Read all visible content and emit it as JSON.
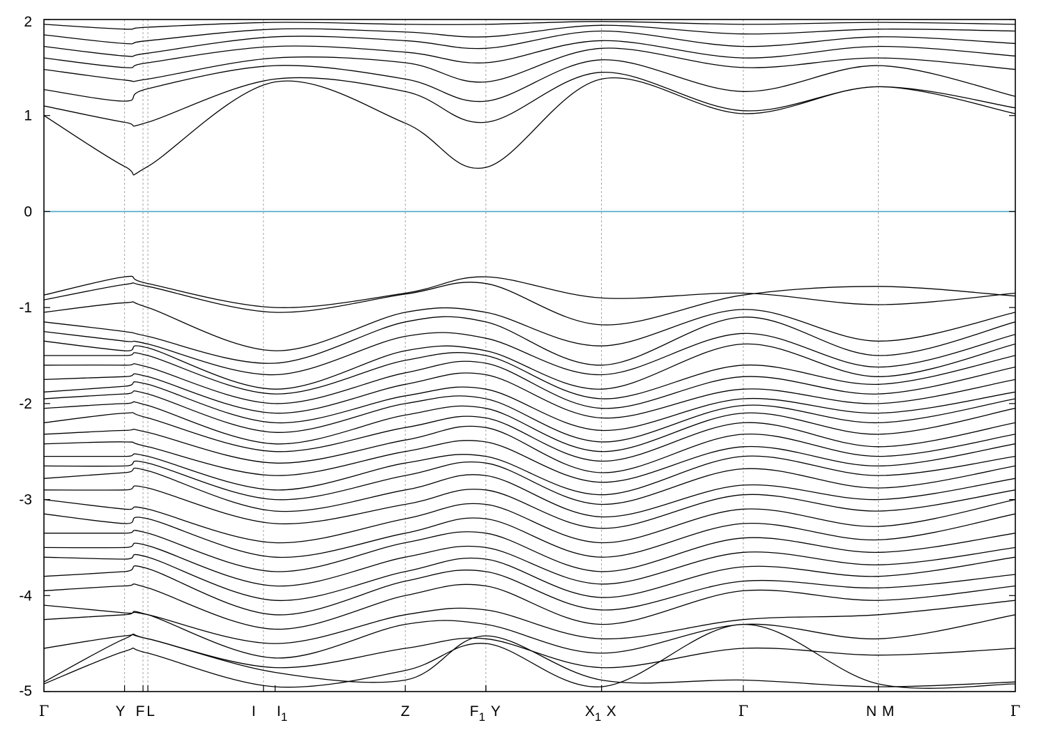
{
  "chart_data": {
    "type": "line",
    "title": "",
    "xlabel": "",
    "ylabel": "",
    "ylim": [
      -5,
      2
    ],
    "yticks": [
      "2",
      "1",
      "0",
      "-1",
      "-2",
      "-3",
      "-4",
      "-5"
    ],
    "ytick_values": [
      2,
      1,
      0,
      -1,
      -2,
      -3,
      -4,
      -5
    ],
    "grid": "vertical dashed lines at high-symmetry points",
    "fermi_level": {
      "value": 0,
      "color": "#4aa8c4"
    },
    "kpoints": [
      {
        "label": "Γ",
        "sub": "",
        "x": 0
      },
      {
        "label": "Y",
        "sub": "",
        "x": 0.083
      },
      {
        "label": "F",
        "sub": "",
        "x": 0.102
      },
      {
        "label": "L",
        "sub": "",
        "x": 0.107
      },
      {
        "label": "I",
        "sub": "",
        "x": 0.226
      },
      {
        "label": "I",
        "sub": "1",
        "x": 0.238
      },
      {
        "label": "Z",
        "sub": "",
        "x": 0.372
      },
      {
        "label": "F",
        "sub": "1",
        "x": 0.455
      },
      {
        "label": "Y",
        "sub": "",
        "x": 0.455
      },
      {
        "label": "X",
        "sub": "1",
        "x": 0.574
      },
      {
        "label": "X",
        "sub": "",
        "x": 0.574
      },
      {
        "label": "Γ",
        "sub": "",
        "x": 0.72
      },
      {
        "label": "N",
        "sub": "",
        "x": 0.859
      },
      {
        "label": "M",
        "sub": "",
        "x": 0.859
      },
      {
        "label": "Γ",
        "sub": "",
        "x": 1.0
      }
    ],
    "vlines": [
      0.083,
      0.102,
      0.107,
      0.226,
      0.372,
      0.455,
      0.574,
      0.72,
      0.859
    ],
    "series_x": [
      0,
      0.083,
      0.107,
      0.238,
      0.372,
      0.455,
      0.574,
      0.72,
      0.859,
      1.0
    ],
    "series": [
      {
        "values": [
          1.0,
          0.47,
          0.47,
          1.35,
          0.92,
          0.46,
          1.38,
          1.02,
          1.3,
          1.02
        ]
      },
      {
        "values": [
          1.1,
          0.93,
          0.93,
          1.38,
          1.25,
          0.93,
          1.45,
          1.05,
          1.3,
          1.08
        ]
      },
      {
        "values": [
          1.27,
          1.15,
          1.28,
          1.52,
          1.38,
          1.15,
          1.58,
          1.25,
          1.52,
          1.2
        ]
      },
      {
        "values": [
          1.48,
          1.37,
          1.38,
          1.6,
          1.55,
          1.35,
          1.7,
          1.5,
          1.6,
          1.48
        ]
      },
      {
        "values": [
          1.6,
          1.5,
          1.55,
          1.72,
          1.66,
          1.55,
          1.78,
          1.6,
          1.72,
          1.62
        ]
      },
      {
        "values": [
          1.72,
          1.62,
          1.65,
          1.82,
          1.78,
          1.7,
          1.88,
          1.72,
          1.82,
          1.75
        ]
      },
      {
        "values": [
          1.84,
          1.75,
          1.78,
          1.9,
          1.87,
          1.82,
          1.94,
          1.85,
          1.9,
          1.88
        ]
      },
      {
        "values": [
          1.95,
          1.9,
          1.92,
          1.97,
          1.95,
          1.95,
          1.98,
          1.95,
          1.97,
          1.95
        ]
      },
      {
        "values": [
          -0.87,
          -0.68,
          -0.75,
          -1.0,
          -0.85,
          -0.68,
          -0.9,
          -0.85,
          -0.97,
          -0.85
        ]
      },
      {
        "values": [
          -0.92,
          -0.76,
          -0.78,
          -1.05,
          -0.86,
          -0.75,
          -1.18,
          -0.87,
          -0.78,
          -0.88
        ]
      },
      {
        "values": [
          -1.05,
          -0.95,
          -1.0,
          -1.45,
          -1.05,
          -1.05,
          -1.4,
          -1.02,
          -1.35,
          -1.05
        ]
      },
      {
        "values": [
          -1.15,
          -1.25,
          -1.3,
          -1.58,
          -1.15,
          -1.15,
          -1.6,
          -1.1,
          -1.5,
          -1.15
        ]
      },
      {
        "values": [
          -1.25,
          -1.35,
          -1.38,
          -1.7,
          -1.3,
          -1.32,
          -1.7,
          -1.27,
          -1.62,
          -1.28
        ]
      },
      {
        "values": [
          -1.35,
          -1.45,
          -1.42,
          -1.85,
          -1.45,
          -1.45,
          -1.85,
          -1.38,
          -1.72,
          -1.38
        ]
      },
      {
        "values": [
          -1.5,
          -1.5,
          -1.5,
          -1.9,
          -1.55,
          -1.5,
          -1.95,
          -1.6,
          -1.8,
          -1.5
        ]
      },
      {
        "values": [
          -1.6,
          -1.6,
          -1.62,
          -2.0,
          -1.68,
          -1.58,
          -2.05,
          -1.72,
          -1.9,
          -1.62
        ]
      },
      {
        "values": [
          -1.75,
          -1.72,
          -1.72,
          -2.1,
          -1.8,
          -1.7,
          -2.15,
          -1.85,
          -2.0,
          -1.75
        ]
      },
      {
        "values": [
          -1.88,
          -1.82,
          -1.8,
          -2.2,
          -1.92,
          -1.85,
          -2.28,
          -1.95,
          -2.1,
          -1.88
        ]
      },
      {
        "values": [
          -1.95,
          -1.9,
          -1.9,
          -2.3,
          -2.0,
          -1.95,
          -2.4,
          -2.02,
          -2.2,
          -1.95
        ]
      },
      {
        "values": [
          -2.05,
          -2.0,
          -2.02,
          -2.42,
          -2.12,
          -2.05,
          -2.5,
          -2.1,
          -2.32,
          -2.05
        ]
      },
      {
        "values": [
          -2.2,
          -2.1,
          -2.15,
          -2.5,
          -2.25,
          -2.15,
          -2.6,
          -2.2,
          -2.45,
          -2.2
        ]
      },
      {
        "values": [
          -2.32,
          -2.28,
          -2.3,
          -2.62,
          -2.38,
          -2.25,
          -2.72,
          -2.32,
          -2.55,
          -2.32
        ]
      },
      {
        "values": [
          -2.42,
          -2.4,
          -2.45,
          -2.75,
          -2.5,
          -2.4,
          -2.82,
          -2.45,
          -2.65,
          -2.42
        ]
      },
      {
        "values": [
          -2.55,
          -2.55,
          -2.55,
          -2.9,
          -2.62,
          -2.55,
          -2.95,
          -2.55,
          -2.75,
          -2.55
        ]
      },
      {
        "values": [
          -2.65,
          -2.65,
          -2.62,
          -3.0,
          -2.75,
          -2.62,
          -3.05,
          -2.68,
          -2.88,
          -2.65
        ]
      },
      {
        "values": [
          -2.78,
          -2.72,
          -2.7,
          -3.12,
          -2.9,
          -2.75,
          -3.18,
          -2.85,
          -3.0,
          -2.78
        ]
      },
      {
        "values": [
          -2.9,
          -2.9,
          -2.88,
          -3.25,
          -3.05,
          -2.9,
          -3.3,
          -2.95,
          -3.12,
          -2.9
        ]
      },
      {
        "values": [
          -3.0,
          -3.1,
          -3.1,
          -3.45,
          -3.2,
          -3.05,
          -3.45,
          -3.1,
          -3.28,
          -3.0
        ]
      },
      {
        "values": [
          -3.15,
          -3.25,
          -3.2,
          -3.6,
          -3.35,
          -3.2,
          -3.6,
          -3.25,
          -3.42,
          -3.15
        ]
      },
      {
        "values": [
          -3.35,
          -3.35,
          -3.35,
          -3.75,
          -3.45,
          -3.35,
          -3.75,
          -3.4,
          -3.55,
          -3.35
        ]
      },
      {
        "values": [
          -3.5,
          -3.5,
          -3.48,
          -3.9,
          -3.6,
          -3.5,
          -3.88,
          -3.55,
          -3.68,
          -3.5
        ]
      },
      {
        "values": [
          -3.6,
          -3.62,
          -3.6,
          -4.05,
          -3.75,
          -3.62,
          -4.02,
          -3.7,
          -3.8,
          -3.6
        ]
      },
      {
        "values": [
          -3.8,
          -3.75,
          -3.72,
          -4.2,
          -3.85,
          -3.75,
          -4.15,
          -3.85,
          -3.92,
          -3.78
        ]
      },
      {
        "values": [
          -3.95,
          -3.9,
          -3.92,
          -4.35,
          -4.0,
          -3.9,
          -4.3,
          -3.95,
          -4.05,
          -3.9
        ]
      },
      {
        "values": [
          -4.1,
          -4.18,
          -4.2,
          -4.5,
          -4.2,
          -4.15,
          -4.45,
          -4.25,
          -4.2,
          -4.05
        ]
      },
      {
        "values": [
          -4.25,
          -4.2,
          -4.2,
          -4.65,
          -4.3,
          -4.3,
          -4.6,
          -4.3,
          -4.45,
          -4.2
        ]
      },
      {
        "values": [
          -4.55,
          -4.42,
          -4.45,
          -4.75,
          -4.55,
          -4.45,
          -4.75,
          -4.55,
          -4.62,
          -4.55
        ]
      },
      {
        "values": [
          -4.9,
          -4.45,
          -4.45,
          -4.8,
          -4.88,
          -4.42,
          -4.88,
          -4.88,
          -4.95,
          -4.9
        ]
      },
      {
        "values": [
          -4.92,
          -4.58,
          -4.6,
          -4.95,
          -4.78,
          -4.5,
          -4.95,
          -4.3,
          -4.92,
          -4.92
        ]
      }
    ]
  }
}
